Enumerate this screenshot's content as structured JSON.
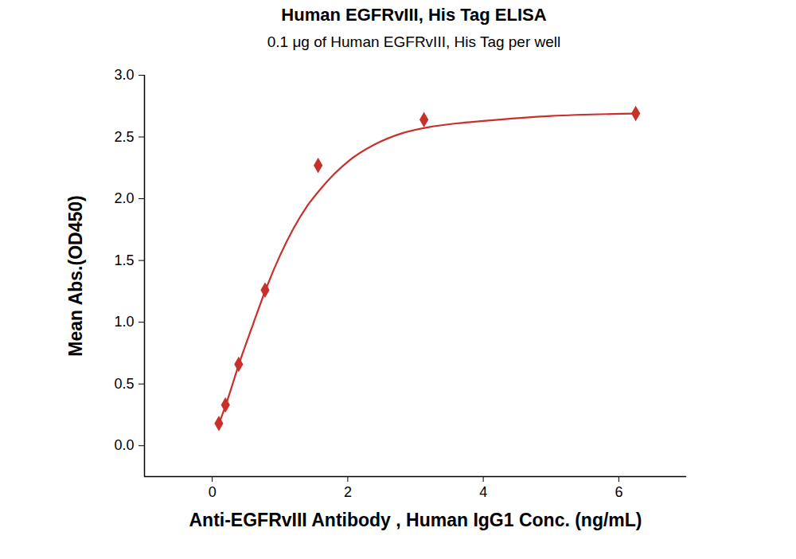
{
  "chart_data": {
    "type": "scatter",
    "title": "Human EGFRvIII, His Tag ELISA",
    "subtitle": "0.1 μg of Human EGFRvIII, His Tag per well",
    "x_label": "Anti-EGFRvIII Antibody , Human IgG1 Conc. (ng/mL)",
    "y_label": "Mean Abs.(OD450)",
    "series": [
      {
        "type": "scatter",
        "color": "#c8302c",
        "marker": "diamond",
        "x": [
          0.098,
          0.195,
          0.39,
          0.78,
          1.5625,
          3.125,
          6.25
        ],
        "values": [
          0.18,
          0.33,
          0.66,
          1.26,
          2.27,
          2.64,
          2.69
        ]
      },
      {
        "type": "line",
        "color": "#c8302c",
        "line_style": "solid",
        "x": [
          0.1,
          0.2,
          0.4,
          0.6,
          0.8,
          1.0,
          1.2,
          1.4,
          1.6,
          1.8,
          2.0,
          2.4,
          2.8,
          3.2,
          3.6,
          4.0,
          5.0,
          6.25
        ],
        "values": [
          0.18,
          0.33,
          0.67,
          0.98,
          1.28,
          1.54,
          1.76,
          1.94,
          2.08,
          2.2,
          2.3,
          2.44,
          2.53,
          2.58,
          2.61,
          2.63,
          2.67,
          2.69
        ]
      }
    ],
    "xlim": [
      -1,
      7
    ],
    "xticks": [
      0,
      2,
      4,
      6
    ],
    "ylim": [
      -0.25,
      3.0
    ],
    "yticks": [
      {
        "value": 0,
        "label": "0.0"
      },
      0.5,
      {
        "value": 1,
        "label": "1.0"
      },
      1.5,
      {
        "value": 2,
        "label": "2.0"
      },
      2.5,
      {
        "value": 3,
        "label": "3.0"
      }
    ],
    "grid": false
  }
}
